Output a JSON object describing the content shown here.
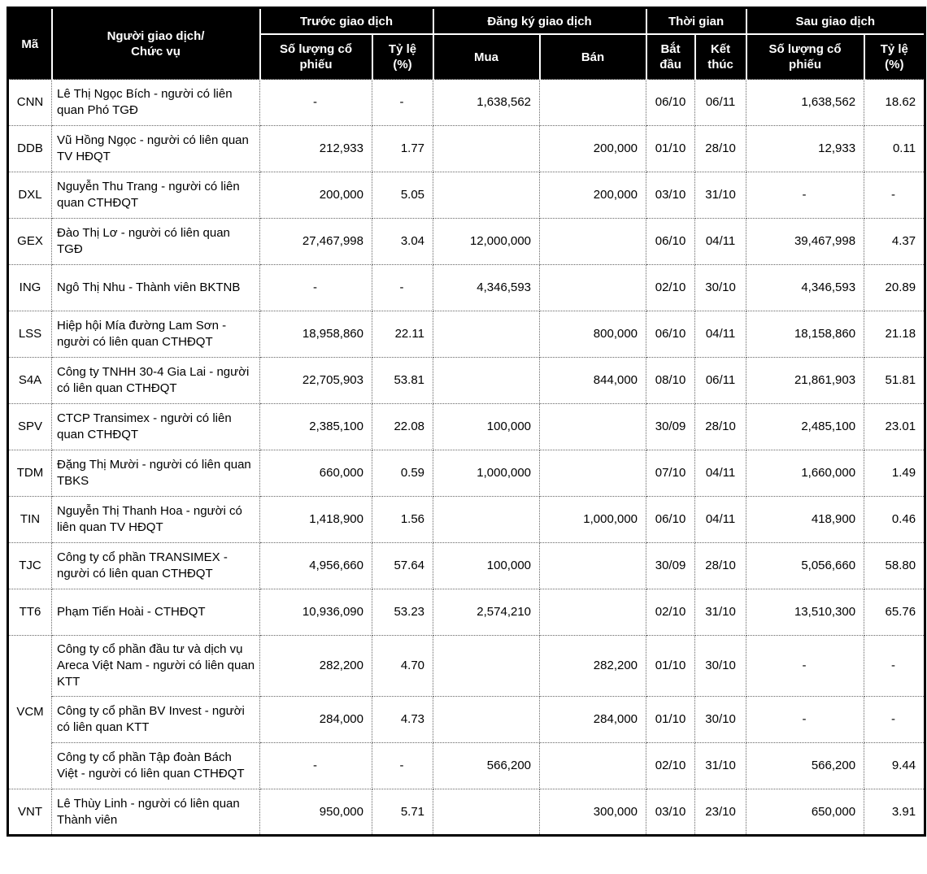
{
  "table": {
    "headers": {
      "code": "Mã",
      "trader": "Người giao dịch/\nChức vụ",
      "before_group": "Trước giao dịch",
      "register_group": "Đăng ký giao dịch",
      "time_group": "Thời gian",
      "after_group": "Sau giao dịch",
      "shares": "Số lượng cổ\nphiếu",
      "ratio": "Tỷ lệ\n(%)",
      "buy": "Mua",
      "sell": "Bán",
      "start": "Bắt\nđầu",
      "end": "Kết\nthúc"
    },
    "colors": {
      "header_bg": "#000000",
      "header_text": "#ffffff",
      "body_text": "#000000",
      "grid_dotted": "#666666",
      "outer_border": "#000000"
    },
    "rows": [
      {
        "code": "CNN",
        "code_rowspan": 1,
        "name": "Lê Thị Ngọc Bích - người có liên quan Phó TGĐ",
        "before_shares": "-",
        "before_pct": "-",
        "buy": "1,638,562",
        "sell": "",
        "start": "06/10",
        "end": "06/11",
        "after_shares": "1,638,562",
        "after_pct": "18.62"
      },
      {
        "code": "DDB",
        "code_rowspan": 1,
        "name": "Vũ Hồng Ngọc - người có liên quan TV HĐQT",
        "before_shares": "212,933",
        "before_pct": "1.77",
        "buy": "",
        "sell": "200,000",
        "start": "01/10",
        "end": "28/10",
        "after_shares": "12,933",
        "after_pct": "0.11"
      },
      {
        "code": "DXL",
        "code_rowspan": 1,
        "name": "Nguyễn Thu Trang - người có liên quan CTHĐQT",
        "before_shares": "200,000",
        "before_pct": "5.05",
        "buy": "",
        "sell": "200,000",
        "start": "03/10",
        "end": "31/10",
        "after_shares": "-",
        "after_pct": "-"
      },
      {
        "code": "GEX",
        "code_rowspan": 1,
        "name": "Đào Thị Lơ  - người có liên quan TGĐ",
        "before_shares": "27,467,998",
        "before_pct": "3.04",
        "buy": "12,000,000",
        "sell": "",
        "start": "06/10",
        "end": "04/11",
        "after_shares": "39,467,998",
        "after_pct": "4.37"
      },
      {
        "code": "ING",
        "code_rowspan": 1,
        "name": "Ngô Thị Nhu - Thành viên BKTNB",
        "before_shares": "-",
        "before_pct": "-",
        "buy": "4,346,593",
        "sell": "",
        "start": "02/10",
        "end": "30/10",
        "after_shares": "4,346,593",
        "after_pct": "20.89"
      },
      {
        "code": "LSS",
        "code_rowspan": 1,
        "name": "Hiệp hội Mía đường Lam Sơn - người có liên quan CTHĐQT",
        "before_shares": "18,958,860",
        "before_pct": "22.11",
        "buy": "",
        "sell": "800,000",
        "start": "06/10",
        "end": "04/11",
        "after_shares": "18,158,860",
        "after_pct": "21.18"
      },
      {
        "code": "S4A",
        "code_rowspan": 1,
        "name": "Công ty TNHH 30-4 Gia Lai - người có liên quan CTHĐQT",
        "before_shares": "22,705,903",
        "before_pct": "53.81",
        "buy": "",
        "sell": "844,000",
        "start": "08/10",
        "end": "06/11",
        "after_shares": "21,861,903",
        "after_pct": "51.81"
      },
      {
        "code": "SPV",
        "code_rowspan": 1,
        "name": "CTCP Transimex - người có liên quan CTHĐQT",
        "before_shares": "2,385,100",
        "before_pct": "22.08",
        "buy": "100,000",
        "sell": "",
        "start": "30/09",
        "end": "28/10",
        "after_shares": "2,485,100",
        "after_pct": "23.01"
      },
      {
        "code": "TDM",
        "code_rowspan": 1,
        "name": "Đặng Thị Mười - người có liên quan TBKS",
        "before_shares": "660,000",
        "before_pct": "0.59",
        "buy": "1,000,000",
        "sell": "",
        "start": "07/10",
        "end": "04/11",
        "after_shares": "1,660,000",
        "after_pct": "1.49"
      },
      {
        "code": "TIN",
        "code_rowspan": 1,
        "name": "Nguyễn Thị Thanh Hoa - người có liên quan TV HĐQT",
        "before_shares": "1,418,900",
        "before_pct": "1.56",
        "buy": "",
        "sell": "1,000,000",
        "start": "06/10",
        "end": "04/11",
        "after_shares": "418,900",
        "after_pct": "0.46"
      },
      {
        "code": "TJC",
        "code_rowspan": 1,
        "name": "Công ty cổ phần TRANSIMEX - người có liên quan CTHĐQT",
        "before_shares": "4,956,660",
        "before_pct": "57.64",
        "buy": "100,000",
        "sell": "",
        "start": "30/09",
        "end": "28/10",
        "after_shares": "5,056,660",
        "after_pct": "58.80"
      },
      {
        "code": "TT6",
        "code_rowspan": 1,
        "name": "Phạm Tiến Hoài - CTHĐQT",
        "before_shares": "10,936,090",
        "before_pct": "53.23",
        "buy": "2,574,210",
        "sell": "",
        "start": "02/10",
        "end": "31/10",
        "after_shares": "13,510,300",
        "after_pct": "65.76"
      },
      {
        "code": "VCM",
        "code_rowspan": 3,
        "name": "Công ty cổ phần đầu tư và dịch vụ Areca Việt Nam - người có liên quan KTT",
        "before_shares": "282,200",
        "before_pct": "4.70",
        "buy": "",
        "sell": "282,200",
        "start": "01/10",
        "end": "30/10",
        "after_shares": "-",
        "after_pct": "-"
      },
      {
        "code": null,
        "name": "Công ty cổ phần BV Invest - người có liên quan KTT",
        "before_shares": "284,000",
        "before_pct": "4.73",
        "buy": "",
        "sell": "284,000",
        "start": "01/10",
        "end": "30/10",
        "after_shares": "-",
        "after_pct": "-"
      },
      {
        "code": null,
        "name": "Công ty cổ phần Tập đoàn Bách Việt - người có liên quan CTHĐQT",
        "before_shares": "-",
        "before_pct": "-",
        "buy": "566,200",
        "sell": "",
        "start": "02/10",
        "end": "31/10",
        "after_shares": "566,200",
        "after_pct": "9.44"
      },
      {
        "code": "VNT",
        "code_rowspan": 1,
        "name": "Lê Thùy Linh - người có liên quan Thành viên",
        "before_shares": "950,000",
        "before_pct": "5.71",
        "buy": "",
        "sell": "300,000",
        "start": "03/10",
        "end": "23/10",
        "after_shares": "650,000",
        "after_pct": "3.91"
      }
    ]
  }
}
